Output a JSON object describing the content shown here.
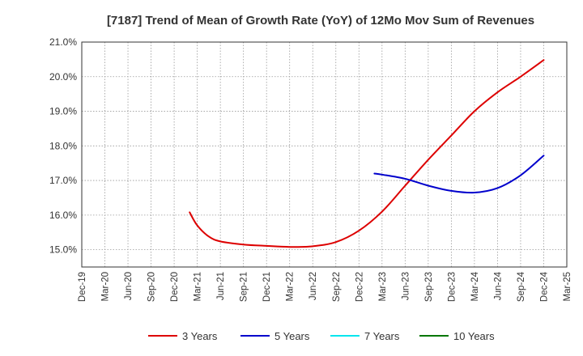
{
  "chart_data": {
    "type": "line",
    "title": "[7187]  Trend of Mean of Growth Rate (YoY) of 12Mo Mov Sum of Revenues",
    "xlabel": "",
    "ylabel": "",
    "ylim": [
      14.5,
      21.0
    ],
    "y_ticks": [
      "15.0%",
      "16.0%",
      "17.0%",
      "18.0%",
      "19.0%",
      "20.0%",
      "21.0%"
    ],
    "y_tick_values": [
      15,
      16,
      17,
      18,
      19,
      20,
      21
    ],
    "x_ticks": [
      "Dec-19",
      "Mar-20",
      "Jun-20",
      "Sep-20",
      "Dec-20",
      "Mar-21",
      "Jun-21",
      "Sep-21",
      "Dec-21",
      "Mar-22",
      "Jun-22",
      "Sep-22",
      "Dec-22",
      "Mar-23",
      "Jun-23",
      "Sep-23",
      "Dec-23",
      "Mar-24",
      "Jun-24",
      "Sep-24",
      "Dec-24",
      "Mar-25"
    ],
    "grid": true,
    "legend_position": "bottom",
    "series": [
      {
        "name": "3 Years",
        "color": "#dd0000",
        "points": [
          {
            "x": 4.67,
            "y": 16.08
          },
          {
            "x": 5.0,
            "y": 15.7
          },
          {
            "x": 5.5,
            "y": 15.38
          },
          {
            "x": 6.0,
            "y": 15.24
          },
          {
            "x": 7.0,
            "y": 15.15
          },
          {
            "x": 8.0,
            "y": 15.11
          },
          {
            "x": 9.0,
            "y": 15.08
          },
          {
            "x": 10.0,
            "y": 15.1
          },
          {
            "x": 11.0,
            "y": 15.22
          },
          {
            "x": 12.0,
            "y": 15.55
          },
          {
            "x": 13.0,
            "y": 16.1
          },
          {
            "x": 14.0,
            "y": 16.85
          },
          {
            "x": 15.0,
            "y": 17.6
          },
          {
            "x": 16.0,
            "y": 18.3
          },
          {
            "x": 17.0,
            "y": 19.0
          },
          {
            "x": 18.0,
            "y": 19.55
          },
          {
            "x": 19.0,
            "y": 20.0
          },
          {
            "x": 20.0,
            "y": 20.48
          }
        ]
      },
      {
        "name": "5 Years",
        "color": "#0000cc",
        "points": [
          {
            "x": 12.67,
            "y": 17.2
          },
          {
            "x": 13.0,
            "y": 17.17
          },
          {
            "x": 14.0,
            "y": 17.05
          },
          {
            "x": 15.0,
            "y": 16.85
          },
          {
            "x": 16.0,
            "y": 16.7
          },
          {
            "x": 17.0,
            "y": 16.65
          },
          {
            "x": 18.0,
            "y": 16.78
          },
          {
            "x": 19.0,
            "y": 17.15
          },
          {
            "x": 20.0,
            "y": 17.72
          }
        ]
      },
      {
        "name": "7 Years",
        "color": "#00e5ee",
        "points": []
      },
      {
        "name": "10 Years",
        "color": "#007700",
        "points": []
      }
    ]
  }
}
